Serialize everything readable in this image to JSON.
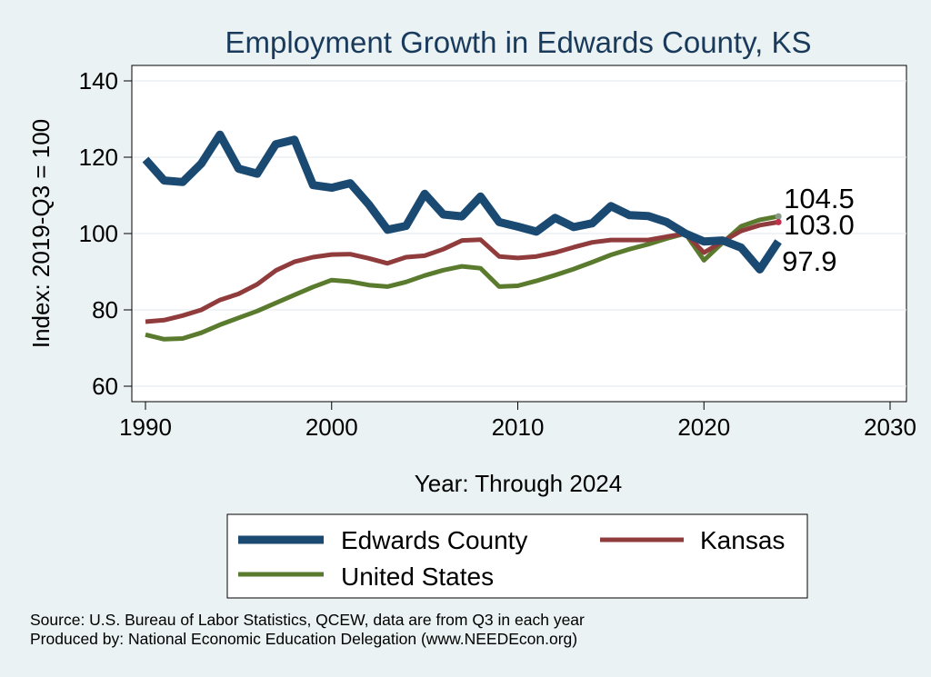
{
  "chart_data": {
    "type": "line",
    "title": "Employment Growth in Edwards County, KS",
    "xlabel": "Year: Through 2024",
    "ylabel": "Index: 2019-Q3 = 100",
    "xlim": [
      1990,
      2030
    ],
    "ylim": [
      56,
      144
    ],
    "x_ticks": [
      1990,
      2000,
      2010,
      2020,
      2030
    ],
    "y_ticks": [
      60,
      80,
      100,
      120,
      140
    ],
    "grid": true,
    "x": [
      1990,
      1991,
      1992,
      1993,
      1994,
      1995,
      1996,
      1997,
      1998,
      1999,
      2000,
      2001,
      2002,
      2003,
      2004,
      2005,
      2006,
      2007,
      2008,
      2009,
      2010,
      2011,
      2012,
      2013,
      2014,
      2015,
      2016,
      2017,
      2018,
      2019,
      2020,
      2021,
      2022,
      2023,
      2024
    ],
    "series": [
      {
        "name": "Edwards  County",
        "color": "#1a4a72",
        "values": [
          119.4,
          113.9,
          113.5,
          118.3,
          125.9,
          117.0,
          115.7,
          123.4,
          124.6,
          112.7,
          112.0,
          113.2,
          107.6,
          101.0,
          102.0,
          110.4,
          105.0,
          104.5,
          109.7,
          103.0,
          101.8,
          100.5,
          104.1,
          101.7,
          102.7,
          107.2,
          104.8,
          104.6,
          103.0,
          100.0,
          97.9,
          98.2,
          96.3,
          90.6,
          97.9
        ],
        "end_label": "97.9"
      },
      {
        "name": "Kansas",
        "color": "#913c3c",
        "values": [
          76.9,
          77.3,
          78.5,
          80.0,
          82.6,
          84.2,
          86.7,
          90.3,
          92.6,
          93.8,
          94.5,
          94.6,
          93.5,
          92.2,
          93.8,
          94.2,
          95.9,
          98.2,
          98.4,
          94.0,
          93.6,
          94.0,
          95.0,
          96.4,
          97.7,
          98.3,
          98.3,
          98.3,
          99.2,
          100.0,
          95.0,
          97.9,
          100.7,
          102.2,
          103.0
        ],
        "end_label": "103.0"
      },
      {
        "name": "United States",
        "color": "#5a7a2e",
        "values": [
          73.5,
          72.3,
          72.5,
          74.0,
          76.1,
          77.9,
          79.7,
          81.8,
          83.9,
          86.0,
          87.8,
          87.4,
          86.5,
          86.1,
          87.3,
          89.0,
          90.4,
          91.4,
          90.9,
          86.1,
          86.3,
          87.6,
          89.1,
          90.7,
          92.5,
          94.4,
          95.9,
          97.2,
          98.7,
          100.0,
          93.0,
          97.6,
          101.9,
          103.6,
          104.5
        ],
        "end_label": "104.5"
      }
    ],
    "legend": {
      "placement": "bottom",
      "entries": [
        "Edwards  County",
        "Kansas",
        "United States"
      ]
    },
    "source_lines": [
      "Source: U.S. Bureau of Labor Statistics, QCEW, data are from Q3 in each year",
      "Produced by: National Economic Education Delegation (www.NEEDEcon.org)"
    ]
  }
}
